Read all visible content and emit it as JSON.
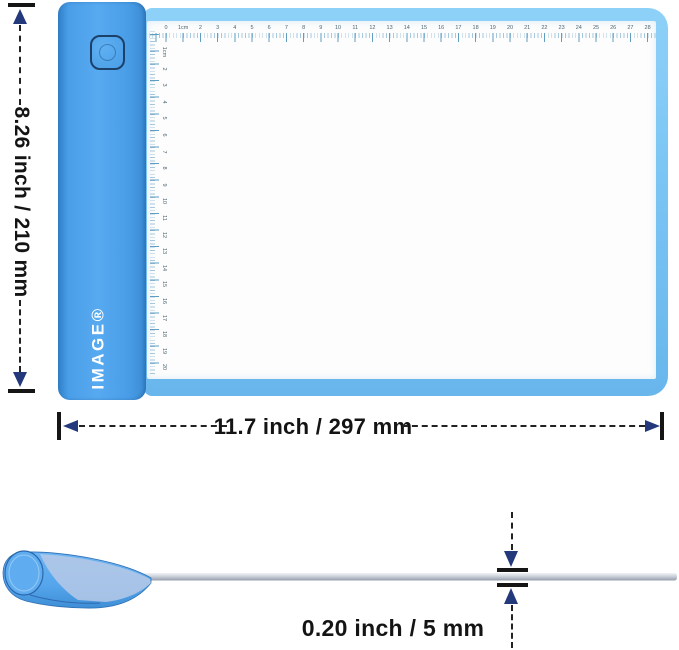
{
  "annotations": {
    "height": {
      "label": "8.26 inch / 210 mm"
    },
    "width": {
      "label": "11.7 inch / 297 mm"
    },
    "thickness": {
      "label": "0.20 inch / 5 mm"
    }
  },
  "device": {
    "brand": "IMAGE®",
    "rulers": {
      "top_unit_numbers": [
        "0",
        "1cm",
        "2",
        "3",
        "4",
        "5",
        "6",
        "7",
        "8",
        "9",
        "10",
        "11",
        "12",
        "13",
        "14",
        "15",
        "16",
        "17",
        "18",
        "19",
        "20",
        "21",
        "22",
        "23",
        "24",
        "25",
        "26",
        "27",
        "28"
      ],
      "left_unit_numbers": [
        "1cm",
        "2",
        "3",
        "4",
        "5",
        "6",
        "7",
        "8",
        "9",
        "10",
        "11",
        "12",
        "13",
        "14",
        "15",
        "16",
        "17",
        "18",
        "19",
        "20"
      ]
    }
  },
  "colors": {
    "strip_blue": "#4a9ee8",
    "frame_blue": "#7cc6f4",
    "panel_white": "#fdfdfd",
    "dim_navy": "#24397b",
    "dim_line": "#222222",
    "tick_black": "#151515",
    "label_black": "#141414",
    "ruler_number": "#4a6472",
    "ruler_tick_blue": "#5f9dc2",
    "side_body_blue": "#54a5ec",
    "side_panel_gray": "#ccd2da",
    "logo_white": "#ffffff"
  }
}
